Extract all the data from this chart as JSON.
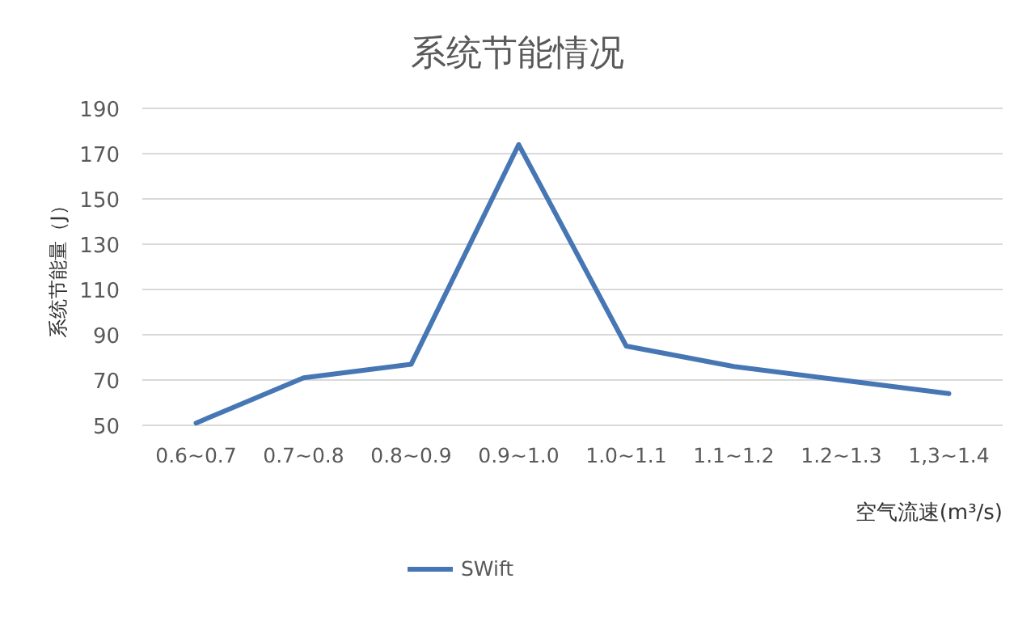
{
  "chart_data": {
    "type": "line",
    "title": "系统节能情况",
    "xlabel": "空气流速(m³/s)",
    "ylabel": "系统节能量（J）",
    "categories": [
      "0.6~0.7",
      "0.7~0.8",
      "0.8~0.9",
      "0.9~1.0",
      "1.0~1.1",
      "1.1~1.2",
      "1.2~1.3",
      "1,3~1.4"
    ],
    "series": [
      {
        "name": "SWift",
        "color": "#4677b4",
        "values": [
          51,
          71,
          77,
          174,
          85,
          76,
          70,
          64
        ]
      }
    ],
    "ylim": [
      50,
      190
    ],
    "yticks": [
      50,
      70,
      90,
      110,
      130,
      150,
      170,
      190
    ],
    "grid": "y",
    "legend": "bottom",
    "marker": "none",
    "line_style": "solid"
  }
}
